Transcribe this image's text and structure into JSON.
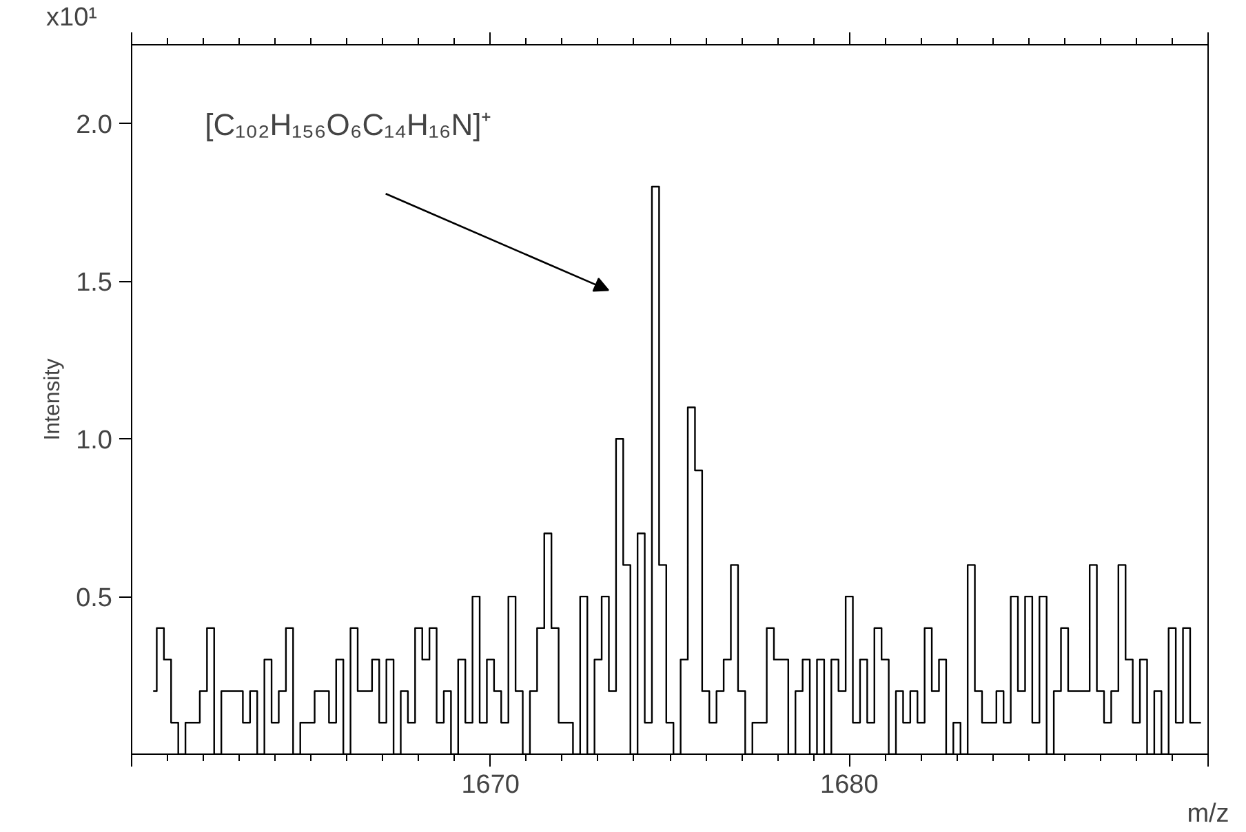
{
  "chart_data": {
    "type": "step",
    "xlabel": "m/z",
    "ylabel": "Intensity",
    "annotations": [
      "[C₁₀₂H₁₅₆O₆C₁₄H₁₆N]⁺",
      "x10¹"
    ],
    "xlim": [
      1660,
      1690
    ],
    "ylim": [
      0,
      2.25
    ],
    "xticks": [
      {
        "value": 1660,
        "label": null
      },
      1670,
      1680,
      {
        "value": 1690,
        "label": null
      }
    ],
    "yticks": [
      {
        "value": 0.5,
        "label": "0.5"
      },
      {
        "value": 1,
        "label": "1.0"
      },
      {
        "value": 1.5,
        "label": "1.5"
      },
      {
        "value": 2,
        "label": "2.0"
      }
    ],
    "grid": false,
    "marker": "none",
    "line_style": "solid",
    "series": [
      {
        "color": "#000000",
        "x": [
          1660.6,
          1660.8,
          1661.0,
          1661.2,
          1661.4,
          1661.6,
          1661.8,
          1662.0,
          1662.2,
          1662.4,
          1662.6,
          1662.8,
          1663.0,
          1663.2,
          1663.4,
          1663.6,
          1663.8,
          1664.0,
          1664.2,
          1664.4,
          1664.6,
          1664.8,
          1665.0,
          1665.2,
          1665.4,
          1665.6,
          1665.8,
          1666.0,
          1666.2,
          1666.4,
          1666.6,
          1666.8,
          1667.0,
          1667.2,
          1667.4,
          1667.6,
          1667.8,
          1668.0,
          1668.2,
          1668.4,
          1668.6,
          1668.8,
          1669.0,
          1669.2,
          1669.4,
          1669.6,
          1669.8,
          1670.0,
          1670.2,
          1670.4,
          1670.6,
          1670.8,
          1671.0,
          1671.2,
          1671.4,
          1671.6,
          1671.8,
          1672.0,
          1672.2,
          1672.4,
          1672.6,
          1672.8,
          1673.0,
          1673.2,
          1673.4,
          1673.6,
          1673.8,
          1674.0,
          1674.2,
          1674.4,
          1674.6,
          1674.8,
          1675.0,
          1675.2,
          1675.4,
          1675.6,
          1675.8,
          1676.0,
          1676.2,
          1676.4,
          1676.6,
          1676.8,
          1677.0,
          1677.2,
          1677.4,
          1677.6,
          1677.8,
          1678.0,
          1678.2,
          1678.4,
          1678.6,
          1678.8,
          1679.0,
          1679.2,
          1679.4,
          1679.6,
          1679.8,
          1680.0,
          1680.2,
          1680.4,
          1680.6,
          1680.8,
          1681.0,
          1681.2,
          1681.4,
          1681.6,
          1681.8,
          1682.0,
          1682.2,
          1682.4,
          1682.6,
          1682.8,
          1683.0,
          1683.2,
          1683.4,
          1683.6,
          1683.8,
          1684.0,
          1684.2,
          1684.4,
          1684.6,
          1684.8,
          1685.0,
          1685.2,
          1685.4,
          1685.6,
          1685.8,
          1686.0,
          1686.2,
          1686.4,
          1686.6,
          1686.8,
          1687.0,
          1687.2,
          1687.4,
          1687.6,
          1687.8,
          1688.0,
          1688.2,
          1688.4,
          1688.6,
          1688.8,
          1689.0,
          1689.2,
          1689.4,
          1689.6,
          1689.8
        ],
        "values": [
          0.2,
          0.4,
          0.3,
          0.1,
          0.0,
          0.1,
          0.1,
          0.2,
          0.4,
          0.0,
          0.2,
          0.2,
          0.2,
          0.1,
          0.2,
          0.0,
          0.3,
          0.1,
          0.2,
          0.4,
          0.0,
          0.1,
          0.1,
          0.2,
          0.2,
          0.1,
          0.3,
          0.0,
          0.4,
          0.2,
          0.2,
          0.3,
          0.1,
          0.3,
          0.0,
          0.2,
          0.1,
          0.4,
          0.3,
          0.4,
          0.1,
          0.2,
          0.0,
          0.3,
          0.1,
          0.5,
          0.1,
          0.3,
          0.2,
          0.1,
          0.5,
          0.2,
          0.0,
          0.2,
          0.4,
          0.7,
          0.4,
          0.1,
          0.1,
          0.0,
          0.5,
          0.0,
          0.3,
          0.5,
          0.2,
          1.0,
          0.6,
          0.0,
          0.7,
          0.1,
          1.8,
          0.6,
          0.1,
          0.0,
          0.3,
          1.1,
          0.9,
          0.2,
          0.1,
          0.2,
          0.3,
          0.6,
          0.2,
          0.0,
          0.1,
          0.1,
          0.4,
          0.3,
          0.3,
          0.0,
          0.2,
          0.3,
          0.0,
          0.3,
          0.0,
          0.3,
          0.2,
          0.5,
          0.1,
          0.3,
          0.1,
          0.4,
          0.3,
          0.0,
          0.2,
          0.1,
          0.2,
          0.1,
          0.4,
          0.2,
          0.3,
          0.0,
          0.1,
          0.0,
          0.6,
          0.2,
          0.1,
          0.1,
          0.2,
          0.1,
          0.5,
          0.2,
          0.5,
          0.1,
          0.5,
          0.0,
          0.2,
          0.4,
          0.2,
          0.2,
          0.2,
          0.6,
          0.2,
          0.1,
          0.2,
          0.6,
          0.3,
          0.1,
          0.3,
          0.0,
          0.2,
          0.0,
          0.4,
          0.1,
          0.4,
          0.1,
          0.1
        ]
      }
    ]
  }
}
